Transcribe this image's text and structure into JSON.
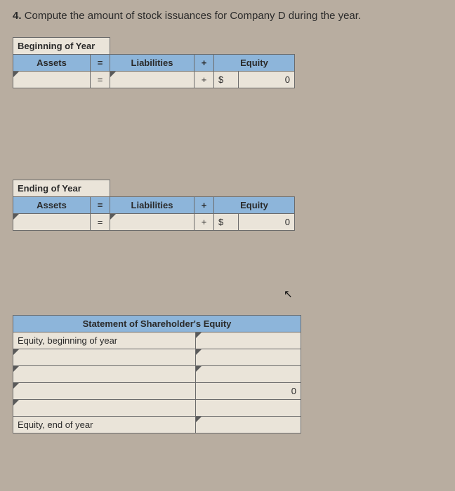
{
  "prompt": {
    "number": "4.",
    "text": "Compute the amount of stock issuances for Company D during the year."
  },
  "tables": {
    "beginning": {
      "title": "Beginning of Year",
      "headers": {
        "assets": "Assets",
        "liabilities": "Liabilities",
        "equity": "Equity"
      },
      "ops": {
        "eq": "=",
        "plus": "+"
      },
      "row": {
        "assets": "",
        "liabilities": "",
        "currency": "$",
        "equity_value": "0"
      }
    },
    "ending": {
      "title": "Ending of Year",
      "headers": {
        "assets": "Assets",
        "liabilities": "Liabilities",
        "equity": "Equity"
      },
      "ops": {
        "eq": "=",
        "plus": "+"
      },
      "row": {
        "assets": "",
        "liabilities": "",
        "currency": "$",
        "equity_value": "0"
      }
    },
    "stmt": {
      "title": "Statement of Shareholder's Equity",
      "rows": [
        {
          "label": "Equity, beginning of year",
          "value": ""
        },
        {
          "label": "",
          "value": ""
        },
        {
          "label": "",
          "value": ""
        },
        {
          "label": "",
          "value": "0"
        },
        {
          "label": "",
          "value": ""
        },
        {
          "label": "Equity, end of year",
          "value": ""
        }
      ]
    }
  },
  "colors": {
    "background": "#b8ada0",
    "header_fill": "#8db5da",
    "cell_fill": "#eae4d9",
    "border": "#6b6b6b"
  }
}
